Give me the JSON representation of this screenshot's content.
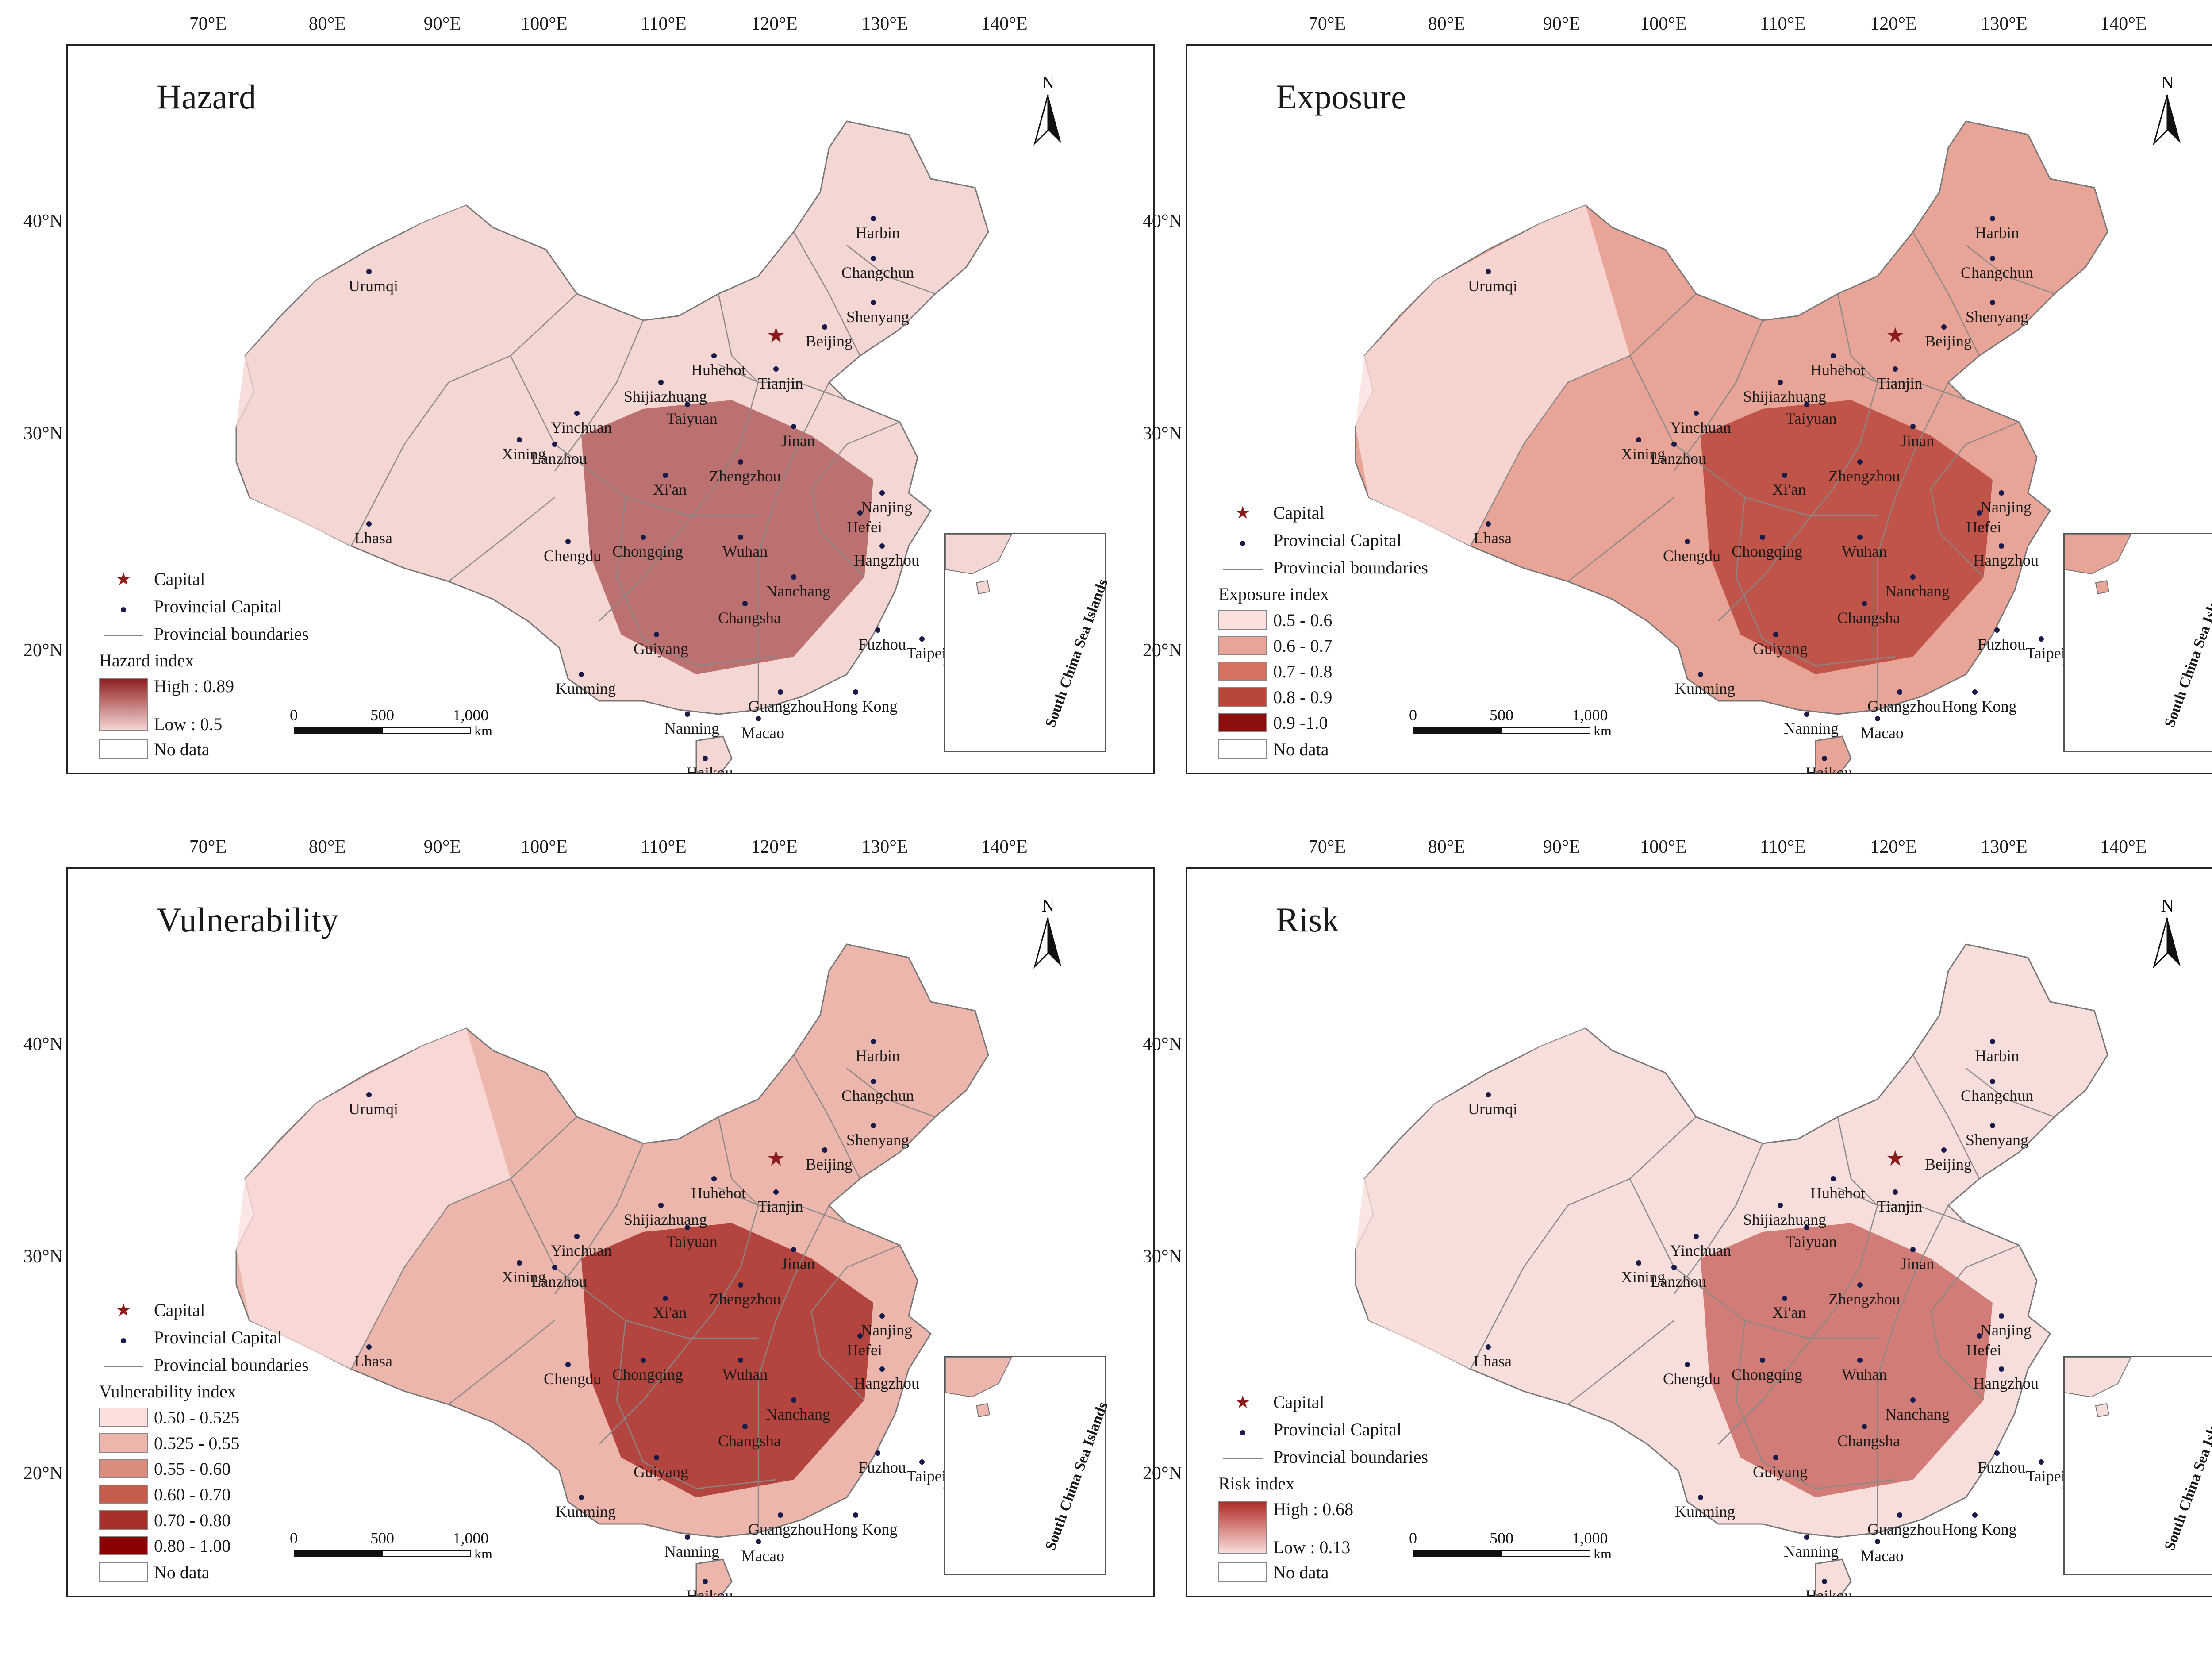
{
  "lon_labels": [
    "70°E",
    "80°E",
    "90°E",
    "100°E",
    "110°E",
    "120°E",
    "130°E",
    "140°E"
  ],
  "lat_labels": [
    "40°N",
    "30°N",
    "20°N"
  ],
  "north_label": "N",
  "scale": {
    "zero": "0",
    "mid": "500",
    "end": "1,000",
    "unit": "km"
  },
  "inset_label": "South China Sea Islands",
  "cities": [
    "Harbin",
    "Changchun",
    "Shenyang",
    "Beijing",
    "Tianjin",
    "Huhehot",
    "Shijiazhuang",
    "Taiyuan",
    "Jinan",
    "Urumqi",
    "Yinchuan",
    "Xining",
    "Lanzhou",
    "Xi'an",
    "Zhengzhou",
    "Nanjing",
    "Hefei",
    "Lhasa",
    "Chengdu",
    "Chongqing",
    "Wuhan",
    "Hangzhou",
    "Nanchang",
    "Changsha",
    "Fuzhou",
    "Taipei",
    "Guiyang",
    "Kunming",
    "Guangzhou",
    "Hong Kong",
    "Nanning",
    "Macao",
    "Haikou"
  ],
  "common_legend": {
    "capital": "Capital",
    "provincial_capital": "Provincial Capital",
    "boundaries": "Provincial boundaries",
    "no_data": "No data"
  },
  "panels": [
    {
      "title": "Hazard",
      "legend_title": "Hazard index",
      "type": "gradient",
      "high": "High : 0.89",
      "low": "Low : 0.5",
      "colors": [
        "#8e1f1f",
        "#f4d6d3"
      ]
    },
    {
      "title": "Exposure",
      "legend_title": "Exposure index",
      "type": "classes",
      "classes": [
        "0.5 - 0.6",
        "0.6 - 0.7",
        "0.7 - 0.8",
        "0.8 - 0.9",
        "0.9 -1.0"
      ],
      "colors": [
        "#fbe0de",
        "#e8a497",
        "#d4735f",
        "#b8473a",
        "#8b0f0f"
      ]
    },
    {
      "title": "Vulnerability",
      "legend_title": "Vulnerability index",
      "type": "classes",
      "classes": [
        "0.50 - 0.525",
        "0.525 - 0.55",
        "0.55 - 0.60",
        "0.60 - 0.70",
        "0.70 - 0.80",
        "0.80 - 1.00"
      ],
      "colors": [
        "#fbe0de",
        "#edb6ad",
        "#dc8c7c",
        "#c55c4c",
        "#a8302a",
        "#8b0000"
      ]
    },
    {
      "title": "Risk",
      "legend_title": "Risk index",
      "type": "gradient",
      "high": "High : 0.68",
      "low": "Low : 0.13",
      "colors": [
        "#b12b25",
        "#f8dedb"
      ]
    }
  ]
}
